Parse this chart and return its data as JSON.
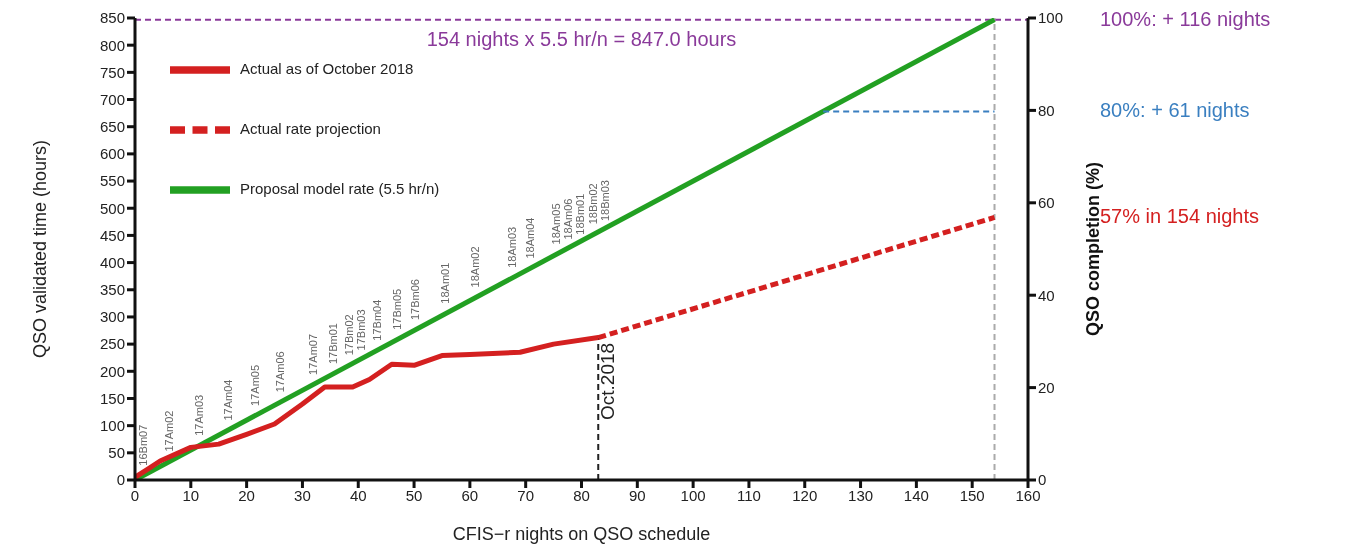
{
  "chart_data": {
    "type": "line",
    "xlabel": "CFIS−r nights on QSO schedule",
    "ylabel": "QSO validated time (hours)",
    "y2label": "QSO completion (%)",
    "xlim": [
      0,
      160
    ],
    "xticks": [
      0,
      10,
      20,
      30,
      40,
      50,
      60,
      70,
      80,
      90,
      100,
      110,
      120,
      130,
      140,
      150,
      160
    ],
    "ylim": [
      0,
      850
    ],
    "yticks": [
      0,
      50,
      100,
      150,
      200,
      250,
      300,
      350,
      400,
      450,
      500,
      550,
      600,
      650,
      700,
      750,
      800,
      850
    ],
    "y2lim": [
      0,
      100
    ],
    "y2ticks": [
      0,
      20,
      40,
      60,
      80,
      100
    ],
    "grid": false,
    "legend": "top left",
    "marker": "none",
    "series": [
      {
        "name": "Proposal model rate (5.5 hr/n)",
        "color": "#22a022",
        "line_style": "solid",
        "x": [
          0,
          154
        ],
        "values": [
          0,
          847
        ]
      },
      {
        "name": "Actual as of October 2018",
        "color": "#d42020",
        "line_style": "solid",
        "x": [
          0,
          2.3,
          4.5,
          10,
          15,
          20,
          25,
          30,
          34,
          39,
          42,
          46,
          50,
          55,
          60,
          69,
          75,
          83
        ],
        "values": [
          5,
          20,
          35,
          60,
          66,
          84,
          103,
          140,
          171,
          171,
          185,
          213,
          211,
          229,
          231,
          235,
          250,
          262
        ]
      },
      {
        "name": "Actual rate projection",
        "color": "#d42020",
        "line_style": "dashed",
        "x": [
          83,
          154
        ],
        "values": [
          262,
          483
        ]
      },
      {
        "color": "#3a7fc0",
        "line_style": "dashed",
        "x": [
          123.3,
          154
        ],
        "values": [
          678,
          678
        ]
      }
    ],
    "ref_lines": [
      {
        "axis": "y",
        "value": 847,
        "label": "154 nights x 5.5 hr/n = 847.0 hours",
        "color": "#8a3a9a",
        "line_style": "dashed"
      },
      {
        "axis": "x",
        "value": 154,
        "color": "#aaaaaa",
        "line_style": "dashed"
      },
      {
        "axis": "x",
        "value": 83,
        "label": "Oct.2018",
        "color": "#222222",
        "line_style": "dashed"
      }
    ],
    "annotations": [
      "100%: + 116 nights",
      "80%: + 61 nights",
      "57% in 154 nights",
      {
        "text": "16Bm07",
        "x": 1.4,
        "y": 8
      },
      {
        "text": "17Am02",
        "x": 6.1,
        "y": 34
      },
      {
        "text": "17Am03",
        "x": 11.4,
        "y": 63
      },
      {
        "text": "17Am04",
        "x": 16.6,
        "y": 91
      },
      {
        "text": "17Am05",
        "x": 21.5,
        "y": 118
      },
      {
        "text": "17Am06",
        "x": 26,
        "y": 143
      },
      {
        "text": "17Am07",
        "x": 31.9,
        "y": 175
      },
      {
        "text": "17Bm01",
        "x": 35.5,
        "y": 195
      },
      {
        "text": "17Bm02",
        "x": 38.4,
        "y": 211
      },
      {
        "text": "17Bm03",
        "x": 40,
        "y": 220
      },
      {
        "text": "17Bm04",
        "x": 43.3,
        "y": 238
      },
      {
        "text": "17Bm05",
        "x": 46.9,
        "y": 258
      },
      {
        "text": "17Bm06",
        "x": 50.1,
        "y": 276
      },
      {
        "text": "18Am01",
        "x": 55.6,
        "y": 306
      },
      {
        "text": "18Am02",
        "x": 61,
        "y": 336
      },
      {
        "text": "18Am03",
        "x": 67.6,
        "y": 372
      },
      {
        "text": "18Am04",
        "x": 70.7,
        "y": 389
      },
      {
        "text": "18Am05",
        "x": 75.4,
        "y": 415
      },
      {
        "text": "18Am06",
        "x": 77,
        "y": 424
      },
      {
        "text": "18Bm01",
        "x": 78.8,
        "y": 433
      },
      {
        "text": "18Bm02",
        "x": 82.1,
        "y": 452
      },
      {
        "text": "18Bm03",
        "x": 83.3,
        "y": 458
      }
    ]
  }
}
